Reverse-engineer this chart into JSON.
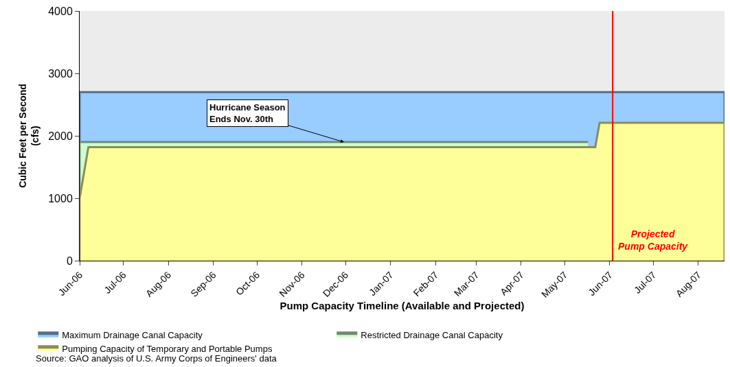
{
  "chart_data": {
    "type": "area",
    "xlabel": "Pump Capacity Timeline (Available and Projected)",
    "ylabel": "Cubic Feet per Second\n(cfs)",
    "xlim": [
      "2006-06-01",
      "2007-08-19"
    ],
    "ylim": [
      0,
      4000
    ],
    "yticks": [
      0,
      1000,
      2000,
      3000,
      4000
    ],
    "xticks": [
      {
        "value": "2006-06-01",
        "label": "Jun-06"
      },
      {
        "value": "2006-07-01",
        "label": "Jul-06"
      },
      {
        "value": "2006-08-01",
        "label": "Aug-06"
      },
      {
        "value": "2006-09-01",
        "label": "Sep-06"
      },
      {
        "value": "2006-10-01",
        "label": "Oct-06"
      },
      {
        "value": "2006-11-01",
        "label": "Nov-06"
      },
      {
        "value": "2006-12-01",
        "label": "Dec-06"
      },
      {
        "value": "2007-01-01",
        "label": "Jan-07"
      },
      {
        "value": "2007-02-01",
        "label": "Feb-07"
      },
      {
        "value": "2007-03-01",
        "label": "Mar-07"
      },
      {
        "value": "2007-04-01",
        "label": "Apr-07"
      },
      {
        "value": "2007-05-01",
        "label": "May-07"
      },
      {
        "value": "2007-06-01",
        "label": "Jun-07"
      },
      {
        "value": "2007-07-01",
        "label": "Jul-07"
      },
      {
        "value": "2007-08-01",
        "label": "Aug-07"
      }
    ],
    "series": [
      {
        "name": "Maximum Drainage Canal Capacity",
        "color": "#99ccff",
        "x": [
          "2006-06-01",
          "2006-06-01",
          "2007-08-19",
          "2007-08-19"
        ],
        "values": [
          0,
          2700,
          2700,
          0
        ]
      },
      {
        "name": "Restricted Drainage Canal Capacity",
        "color": "#ccffcc",
        "x": [
          "2006-06-01",
          "2006-06-01",
          "2007-05-17"
        ],
        "values": [
          0,
          1900,
          1900
        ]
      },
      {
        "name": "Pumping Capacity of Temporary and Portable Pumps",
        "color": "#ffff99",
        "x": [
          "2006-06-01",
          "2006-06-01",
          "2006-06-07",
          "2007-05-22",
          "2007-05-25",
          "2007-08-19",
          "2007-08-19"
        ],
        "values": [
          0,
          1000,
          1820,
          1820,
          2210,
          2210,
          0
        ]
      }
    ],
    "ref_lines": [
      {
        "axis": "x",
        "value": "2007-06-03",
        "label": "Projected\nPump Capacity",
        "color": "#ff0000"
      }
    ],
    "annotations": [
      {
        "text": "Hurricane Season\nEnds Nov. 30th",
        "x": "2006-11-30",
        "y": 1900
      },
      "Source: GAO analysis of U.S. Army Corps of Engineers' data"
    ],
    "grid": false,
    "legend": "bottom"
  }
}
